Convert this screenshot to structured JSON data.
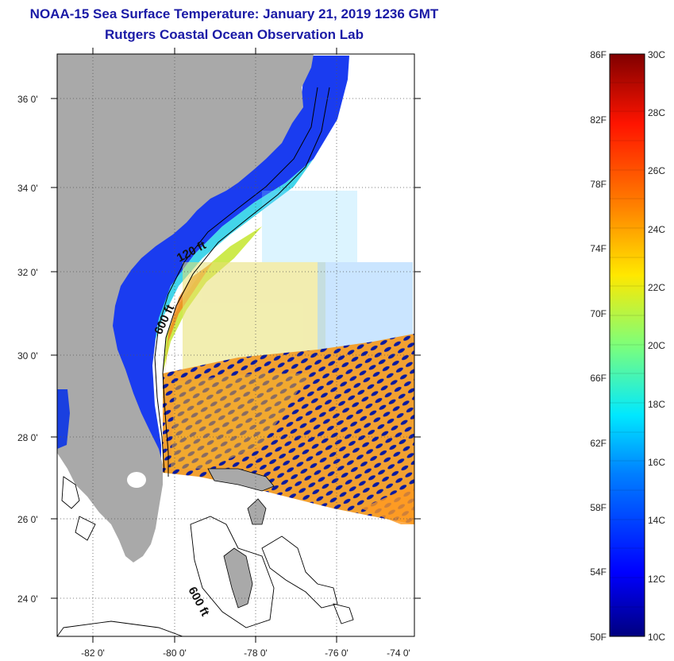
{
  "header": {
    "title": "NOAA-15 Sea Surface Temperature:  January 21, 2019 1236 GMT",
    "subtitle": "Rutgers Coastal Ocean Observation Lab"
  },
  "map": {
    "lat_ticks": [
      "36 0'",
      "34 0'",
      "32 0'",
      "30 0'",
      "28 0'",
      "26 0'",
      "24 0'"
    ],
    "lon_ticks": [
      "-82 0'",
      "-80 0'",
      "-78 0'",
      "-76 0'",
      "-74 0'"
    ],
    "contour_labels": {
      "c120": "120 ft",
      "c600a": "600 ft",
      "c600b": "600 ft"
    },
    "colors": {
      "land": "#a9a9a9",
      "frame": "#000000",
      "gridline": "#555555"
    }
  },
  "colorbar": {
    "fahrenheit": [
      "86F",
      "82F",
      "78F",
      "74F",
      "70F",
      "66F",
      "62F",
      "58F",
      "54F",
      "50F"
    ],
    "celsius": [
      "30C",
      "28C",
      "26C",
      "24C",
      "22C",
      "20C",
      "18C",
      "16C",
      "14C",
      "12C",
      "10C"
    ],
    "range_f": [
      50,
      86
    ],
    "range_c": [
      10,
      30
    ]
  }
}
